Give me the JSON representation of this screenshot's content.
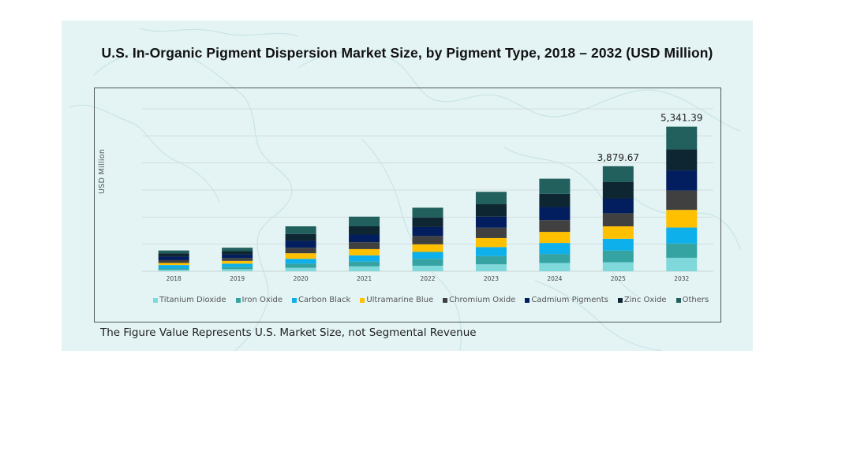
{
  "chart_data": {
    "type": "bar",
    "stacked": true,
    "title": "U.S. In-Organic Pigment Dispersion Market Size, by Pigment Type, 2018 – 2032 (USD Million)",
    "xlabel": "",
    "ylabel": "USD Million",
    "ylim": [
      0,
      6000
    ],
    "grid": true,
    "y_tick_labels_visible": false,
    "legend_position": "bottom",
    "categories": [
      "2018",
      "2019",
      "2020",
      "2021",
      "2022",
      "2023",
      "2024",
      "2025",
      "2032"
    ],
    "series": [
      {
        "name": "Titanium Dioxide",
        "color": "#7fd8da",
        "values": [
          51,
          77,
          128,
          179,
          204,
          255,
          306,
          332,
          497
        ]
      },
      {
        "name": "Iron Oxide",
        "color": "#36a3a3",
        "values": [
          51,
          77,
          153,
          179,
          255,
          306,
          332,
          434,
          528
        ]
      },
      {
        "name": "Carbon Black",
        "color": "#0db0ea",
        "values": [
          128,
          128,
          179,
          230,
          255,
          332,
          408,
          434,
          590
        ]
      },
      {
        "name": "Ultramarine Blue",
        "color": "#ffc000",
        "values": [
          77,
          102,
          204,
          230,
          281,
          332,
          408,
          459,
          652
        ]
      },
      {
        "name": "Chromium Oxide",
        "color": "#404040",
        "values": [
          102,
          102,
          204,
          255,
          306,
          383,
          434,
          485,
          714
        ]
      },
      {
        "name": "Cadmium Pigments",
        "color": "#031e5e",
        "values": [
          128,
          128,
          255,
          281,
          332,
          408,
          485,
          536,
          745
        ]
      },
      {
        "name": "Zinc Oxide",
        "color": "#0e2631",
        "values": [
          128,
          128,
          255,
          306,
          357,
          459,
          485,
          612,
          776
        ]
      },
      {
        "name": "Others",
        "color": "#22605d",
        "values": [
          102,
          128,
          281,
          357,
          357,
          459,
          561,
          588,
          839
        ]
      }
    ],
    "totals": [
      768,
      870,
      1659,
      2017,
      2347,
      2934,
      3419,
      3879.67,
      5341.39
    ],
    "data_labels": [
      {
        "category": "2025",
        "text": "3,879.67"
      },
      {
        "category": "2032",
        "text": "5,341.39"
      }
    ]
  },
  "footnote": "The Figure Value Represents U.S. Market Size, not Segmental Revenue"
}
